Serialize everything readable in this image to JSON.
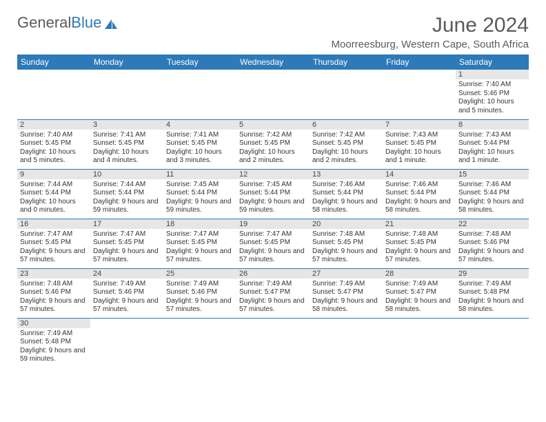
{
  "logo": {
    "text1": "General",
    "text2": "Blue"
  },
  "title": "June 2024",
  "location": "Moorreesburg, Western Cape, South Africa",
  "colors": {
    "header_bg": "#2e7ab8",
    "header_text": "#ffffff",
    "daynum_bg": "#e6e6e6",
    "text": "#333333",
    "border": "#2e7ab8"
  },
  "weekdays": [
    "Sunday",
    "Monday",
    "Tuesday",
    "Wednesday",
    "Thursday",
    "Friday",
    "Saturday"
  ],
  "weeks": [
    [
      null,
      null,
      null,
      null,
      null,
      null,
      {
        "n": "1",
        "sunrise": "Sunrise: 7:40 AM",
        "sunset": "Sunset: 5:46 PM",
        "daylight": "Daylight: 10 hours and 5 minutes."
      }
    ],
    [
      {
        "n": "2",
        "sunrise": "Sunrise: 7:40 AM",
        "sunset": "Sunset: 5:45 PM",
        "daylight": "Daylight: 10 hours and 5 minutes."
      },
      {
        "n": "3",
        "sunrise": "Sunrise: 7:41 AM",
        "sunset": "Sunset: 5:45 PM",
        "daylight": "Daylight: 10 hours and 4 minutes."
      },
      {
        "n": "4",
        "sunrise": "Sunrise: 7:41 AM",
        "sunset": "Sunset: 5:45 PM",
        "daylight": "Daylight: 10 hours and 3 minutes."
      },
      {
        "n": "5",
        "sunrise": "Sunrise: 7:42 AM",
        "sunset": "Sunset: 5:45 PM",
        "daylight": "Daylight: 10 hours and 2 minutes."
      },
      {
        "n": "6",
        "sunrise": "Sunrise: 7:42 AM",
        "sunset": "Sunset: 5:45 PM",
        "daylight": "Daylight: 10 hours and 2 minutes."
      },
      {
        "n": "7",
        "sunrise": "Sunrise: 7:43 AM",
        "sunset": "Sunset: 5:45 PM",
        "daylight": "Daylight: 10 hours and 1 minute."
      },
      {
        "n": "8",
        "sunrise": "Sunrise: 7:43 AM",
        "sunset": "Sunset: 5:44 PM",
        "daylight": "Daylight: 10 hours and 1 minute."
      }
    ],
    [
      {
        "n": "9",
        "sunrise": "Sunrise: 7:44 AM",
        "sunset": "Sunset: 5:44 PM",
        "daylight": "Daylight: 10 hours and 0 minutes."
      },
      {
        "n": "10",
        "sunrise": "Sunrise: 7:44 AM",
        "sunset": "Sunset: 5:44 PM",
        "daylight": "Daylight: 9 hours and 59 minutes."
      },
      {
        "n": "11",
        "sunrise": "Sunrise: 7:45 AM",
        "sunset": "Sunset: 5:44 PM",
        "daylight": "Daylight: 9 hours and 59 minutes."
      },
      {
        "n": "12",
        "sunrise": "Sunrise: 7:45 AM",
        "sunset": "Sunset: 5:44 PM",
        "daylight": "Daylight: 9 hours and 59 minutes."
      },
      {
        "n": "13",
        "sunrise": "Sunrise: 7:46 AM",
        "sunset": "Sunset: 5:44 PM",
        "daylight": "Daylight: 9 hours and 58 minutes."
      },
      {
        "n": "14",
        "sunrise": "Sunrise: 7:46 AM",
        "sunset": "Sunset: 5:44 PM",
        "daylight": "Daylight: 9 hours and 58 minutes."
      },
      {
        "n": "15",
        "sunrise": "Sunrise: 7:46 AM",
        "sunset": "Sunset: 5:44 PM",
        "daylight": "Daylight: 9 hours and 58 minutes."
      }
    ],
    [
      {
        "n": "16",
        "sunrise": "Sunrise: 7:47 AM",
        "sunset": "Sunset: 5:45 PM",
        "daylight": "Daylight: 9 hours and 57 minutes."
      },
      {
        "n": "17",
        "sunrise": "Sunrise: 7:47 AM",
        "sunset": "Sunset: 5:45 PM",
        "daylight": "Daylight: 9 hours and 57 minutes."
      },
      {
        "n": "18",
        "sunrise": "Sunrise: 7:47 AM",
        "sunset": "Sunset: 5:45 PM",
        "daylight": "Daylight: 9 hours and 57 minutes."
      },
      {
        "n": "19",
        "sunrise": "Sunrise: 7:47 AM",
        "sunset": "Sunset: 5:45 PM",
        "daylight": "Daylight: 9 hours and 57 minutes."
      },
      {
        "n": "20",
        "sunrise": "Sunrise: 7:48 AM",
        "sunset": "Sunset: 5:45 PM",
        "daylight": "Daylight: 9 hours and 57 minutes."
      },
      {
        "n": "21",
        "sunrise": "Sunrise: 7:48 AM",
        "sunset": "Sunset: 5:45 PM",
        "daylight": "Daylight: 9 hours and 57 minutes."
      },
      {
        "n": "22",
        "sunrise": "Sunrise: 7:48 AM",
        "sunset": "Sunset: 5:46 PM",
        "daylight": "Daylight: 9 hours and 57 minutes."
      }
    ],
    [
      {
        "n": "23",
        "sunrise": "Sunrise: 7:48 AM",
        "sunset": "Sunset: 5:46 PM",
        "daylight": "Daylight: 9 hours and 57 minutes."
      },
      {
        "n": "24",
        "sunrise": "Sunrise: 7:49 AM",
        "sunset": "Sunset: 5:46 PM",
        "daylight": "Daylight: 9 hours and 57 minutes."
      },
      {
        "n": "25",
        "sunrise": "Sunrise: 7:49 AM",
        "sunset": "Sunset: 5:46 PM",
        "daylight": "Daylight: 9 hours and 57 minutes."
      },
      {
        "n": "26",
        "sunrise": "Sunrise: 7:49 AM",
        "sunset": "Sunset: 5:47 PM",
        "daylight": "Daylight: 9 hours and 57 minutes."
      },
      {
        "n": "27",
        "sunrise": "Sunrise: 7:49 AM",
        "sunset": "Sunset: 5:47 PM",
        "daylight": "Daylight: 9 hours and 58 minutes."
      },
      {
        "n": "28",
        "sunrise": "Sunrise: 7:49 AM",
        "sunset": "Sunset: 5:47 PM",
        "daylight": "Daylight: 9 hours and 58 minutes."
      },
      {
        "n": "29",
        "sunrise": "Sunrise: 7:49 AM",
        "sunset": "Sunset: 5:48 PM",
        "daylight": "Daylight: 9 hours and 58 minutes."
      }
    ],
    [
      {
        "n": "30",
        "sunrise": "Sunrise: 7:49 AM",
        "sunset": "Sunset: 5:48 PM",
        "daylight": "Daylight: 9 hours and 59 minutes."
      },
      null,
      null,
      null,
      null,
      null,
      null
    ]
  ]
}
